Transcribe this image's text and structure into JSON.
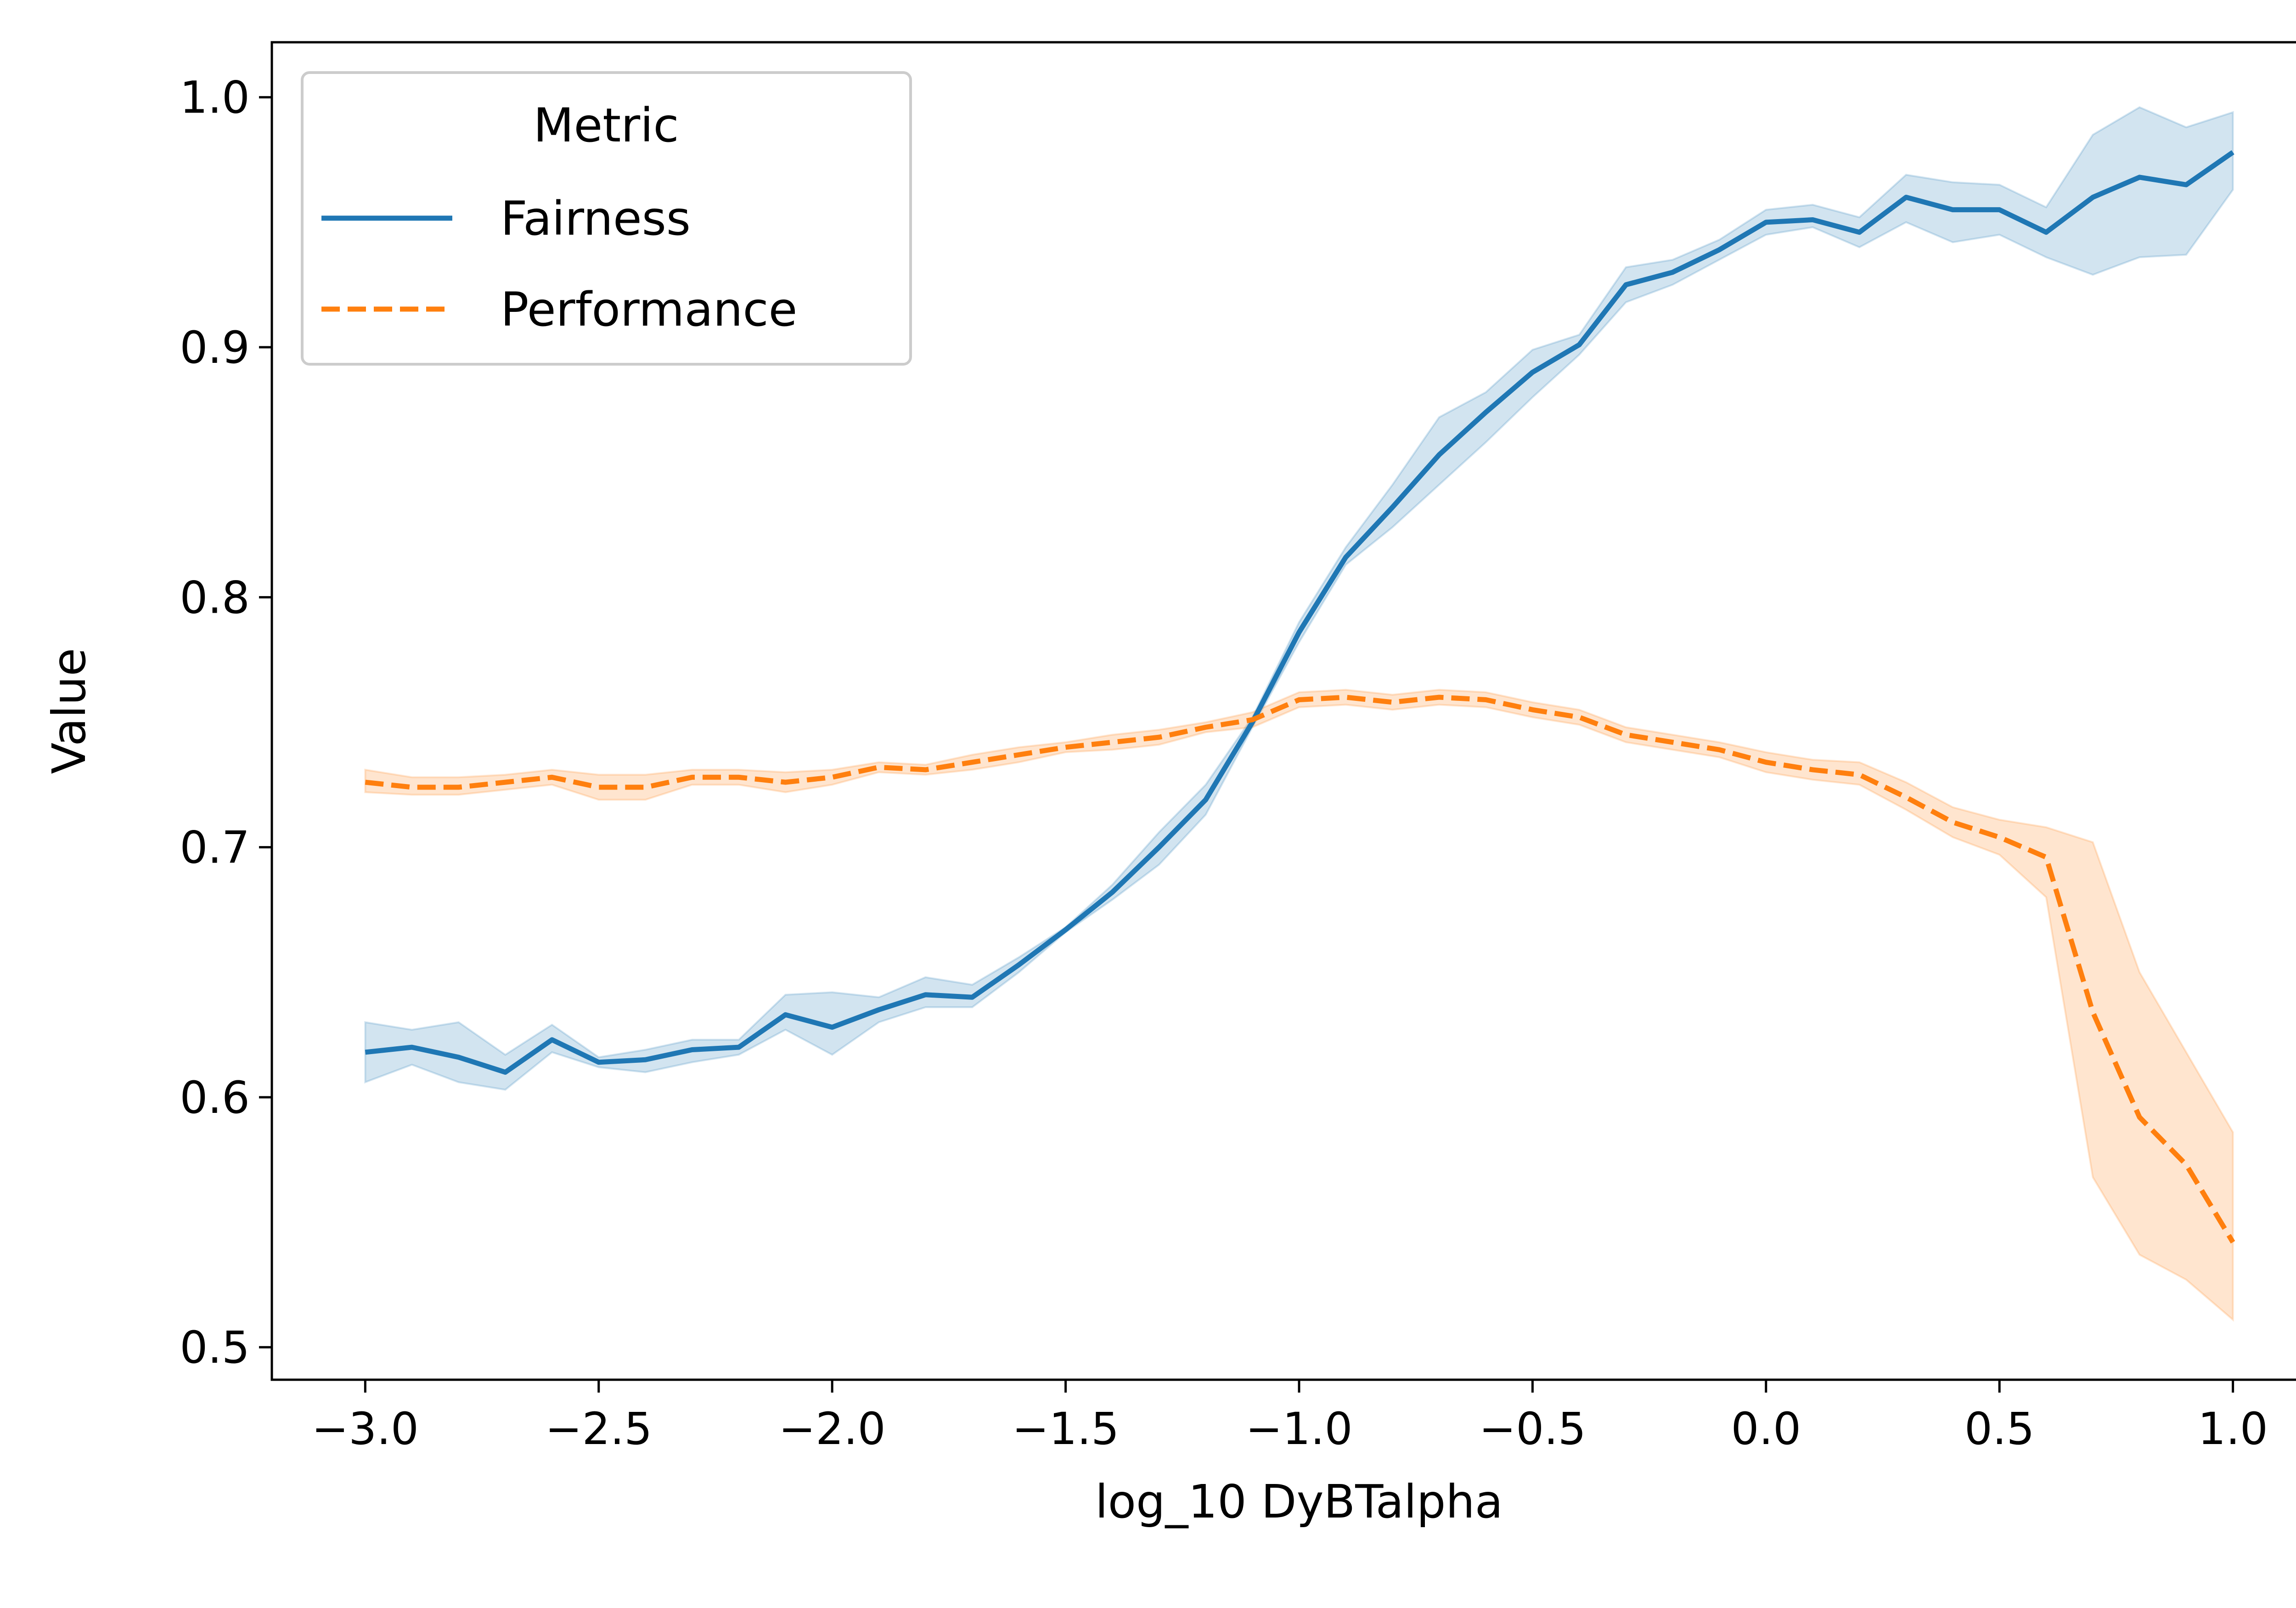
{
  "chart_data": {
    "type": "line",
    "title": "",
    "xlabel": "log_10 DyBTalpha",
    "ylabel": "Value",
    "xlim": [
      -3.2,
      1.2
    ],
    "ylim": [
      0.487,
      1.022
    ],
    "grid": false,
    "legend": {
      "title": "Metric",
      "placement": "top-left",
      "entries": [
        "Fairness",
        "Performance"
      ]
    },
    "x_ticks": [
      -3.0,
      -2.5,
      -2.0,
      -1.5,
      -1.0,
      -0.5,
      0.0,
      0.5,
      1.0
    ],
    "x_tick_labels": [
      "−3.0",
      "−2.5",
      "−2.0",
      "−1.5",
      "−1.0",
      "−0.5",
      "0.0",
      "0.5",
      "1.0"
    ],
    "y_ticks": [
      0.5,
      0.6,
      0.7,
      0.8,
      0.9,
      1.0
    ],
    "y_tick_labels": [
      "0.5",
      "0.6",
      "0.7",
      "0.8",
      "0.9",
      "1.0"
    ],
    "x": [
      -3.0,
      -2.9,
      -2.8,
      -2.7,
      -2.6,
      -2.5,
      -2.4,
      -2.3,
      -2.2,
      -2.1,
      -2.0,
      -1.9,
      -1.8,
      -1.7,
      -1.6,
      -1.5,
      -1.4,
      -1.3,
      -1.2,
      -1.1,
      -1.0,
      -0.9,
      -0.8,
      -0.7,
      -0.6,
      -0.5,
      -0.4,
      -0.3,
      -0.2,
      -0.1,
      0.0,
      0.1,
      0.2,
      0.3,
      0.4,
      0.5,
      0.6,
      0.7,
      0.8,
      0.9,
      1.0
    ],
    "series": [
      {
        "name": "Fairness",
        "color": "#1f77b4",
        "style": "solid",
        "values": [
          0.618,
          0.62,
          0.616,
          0.61,
          0.623,
          0.614,
          0.615,
          0.619,
          0.62,
          0.633,
          0.628,
          0.635,
          0.641,
          0.64,
          0.653,
          0.667,
          0.682,
          0.7,
          0.719,
          0.75,
          0.786,
          0.816,
          0.836,
          0.857,
          0.874,
          0.89,
          0.901,
          0.925,
          0.93,
          0.939,
          0.95,
          0.951,
          0.946,
          0.96,
          0.955,
          0.955,
          0.946,
          0.96,
          0.968,
          0.965,
          0.978
        ],
        "lower": [
          0.606,
          0.613,
          0.606,
          0.603,
          0.618,
          0.612,
          0.61,
          0.614,
          0.617,
          0.627,
          0.617,
          0.63,
          0.636,
          0.636,
          0.65,
          0.666,
          0.679,
          0.693,
          0.713,
          0.748,
          0.782,
          0.813,
          0.828,
          0.845,
          0.862,
          0.88,
          0.897,
          0.918,
          0.925,
          0.935,
          0.945,
          0.948,
          0.94,
          0.95,
          0.942,
          0.945,
          0.936,
          0.929,
          0.936,
          0.937,
          0.963
        ],
        "upper": [
          0.63,
          0.627,
          0.63,
          0.617,
          0.629,
          0.616,
          0.619,
          0.623,
          0.623,
          0.641,
          0.642,
          0.64,
          0.648,
          0.645,
          0.656,
          0.668,
          0.685,
          0.706,
          0.725,
          0.752,
          0.79,
          0.82,
          0.845,
          0.872,
          0.882,
          0.899,
          0.905,
          0.932,
          0.935,
          0.943,
          0.955,
          0.957,
          0.952,
          0.969,
          0.966,
          0.965,
          0.956,
          0.985,
          0.996,
          0.988,
          0.994
        ]
      },
      {
        "name": "Performance",
        "color": "#ff7f0e",
        "style": "dashed",
        "values": [
          0.726,
          0.724,
          0.724,
          0.726,
          0.728,
          0.724,
          0.724,
          0.728,
          0.728,
          0.726,
          0.728,
          0.732,
          0.731,
          0.734,
          0.737,
          0.74,
          0.742,
          0.744,
          0.748,
          0.751,
          0.759,
          0.76,
          0.758,
          0.76,
          0.759,
          0.755,
          0.752,
          0.745,
          0.742,
          0.739,
          0.734,
          0.731,
          0.729,
          0.72,
          0.71,
          0.704,
          0.696,
          0.634,
          0.592,
          0.573,
          0.542
        ],
        "lower": [
          0.722,
          0.721,
          0.721,
          0.723,
          0.725,
          0.719,
          0.719,
          0.725,
          0.725,
          0.722,
          0.725,
          0.73,
          0.729,
          0.731,
          0.734,
          0.738,
          0.739,
          0.741,
          0.746,
          0.748,
          0.756,
          0.757,
          0.755,
          0.757,
          0.756,
          0.752,
          0.749,
          0.742,
          0.739,
          0.736,
          0.73,
          0.727,
          0.725,
          0.715,
          0.704,
          0.697,
          0.68,
          0.568,
          0.537,
          0.527,
          0.511
        ],
        "upper": [
          0.731,
          0.728,
          0.728,
          0.729,
          0.731,
          0.729,
          0.729,
          0.731,
          0.731,
          0.73,
          0.731,
          0.734,
          0.733,
          0.737,
          0.74,
          0.742,
          0.745,
          0.747,
          0.75,
          0.754,
          0.762,
          0.763,
          0.761,
          0.763,
          0.762,
          0.758,
          0.755,
          0.748,
          0.745,
          0.742,
          0.738,
          0.735,
          0.734,
          0.726,
          0.716,
          0.711,
          0.708,
          0.702,
          0.65,
          0.618,
          0.586
        ]
      }
    ]
  }
}
